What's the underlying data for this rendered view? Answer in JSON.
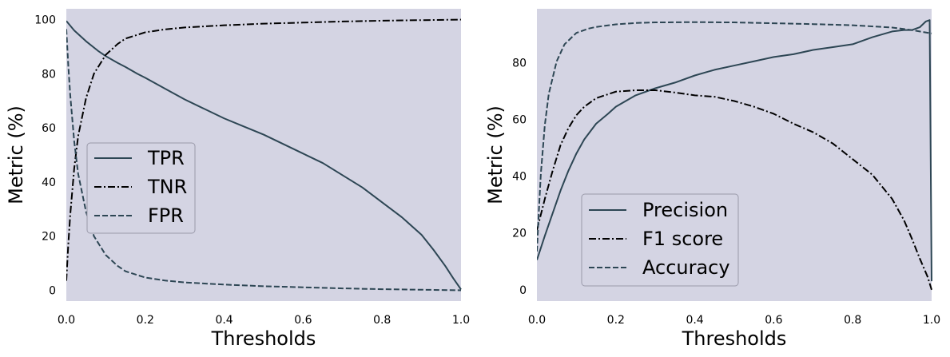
{
  "chart_data": [
    {
      "type": "line",
      "xlabel": "Thresholds",
      "ylabel": "Metric (%)",
      "xlim": [
        0.0,
        1.0
      ],
      "ylim": [
        -4,
        104
      ],
      "xticks": [
        0.0,
        0.2,
        0.4,
        0.6,
        0.8,
        1.0
      ],
      "xtick_labels": [
        "0.0",
        "0.2",
        "0.4",
        "0.6",
        "0.8",
        "1.0"
      ],
      "yticks": [
        0,
        20,
        40,
        60,
        80,
        100
      ],
      "ytick_labels": [
        "0",
        "20",
        "40",
        "60",
        "80",
        "100"
      ],
      "grid": false,
      "legend_position": "center-left",
      "series": [
        {
          "name": "TPR",
          "style": "solid",
          "color": "#2d4654",
          "x": [
            0,
            0.02,
            0.05,
            0.08,
            0.1,
            0.13,
            0.15,
            0.18,
            0.2,
            0.25,
            0.3,
            0.35,
            0.4,
            0.45,
            0.5,
            0.55,
            0.6,
            0.65,
            0.7,
            0.75,
            0.8,
            0.85,
            0.9,
            0.93,
            0.96,
            0.98,
            1.0
          ],
          "y": [
            99.5,
            96,
            92,
            88.5,
            86.5,
            84,
            82.5,
            80,
            78.5,
            74.5,
            70.5,
            67,
            63.5,
            60.5,
            57.5,
            54,
            50.5,
            47,
            42.5,
            38,
            32.5,
            27,
            20.5,
            15,
            9,
            4.5,
            0.3
          ]
        },
        {
          "name": "TNR",
          "style": "dashdot",
          "color": "#000000",
          "x": [
            0,
            0.005,
            0.01,
            0.02,
            0.03,
            0.05,
            0.07,
            0.1,
            0.13,
            0.15,
            0.2,
            0.25,
            0.3,
            0.4,
            0.5,
            0.6,
            0.7,
            0.8,
            0.9,
            1.0
          ],
          "y": [
            3.5,
            17,
            28,
            45,
            57,
            71,
            80,
            87,
            91,
            93,
            95.3,
            96.4,
            97.1,
            97.9,
            98.5,
            98.9,
            99.3,
            99.6,
            99.8,
            100
          ]
        },
        {
          "name": "FPR",
          "style": "dashed",
          "color": "#2d4654",
          "x": [
            0,
            0.005,
            0.01,
            0.02,
            0.03,
            0.05,
            0.07,
            0.1,
            0.13,
            0.15,
            0.2,
            0.25,
            0.3,
            0.4,
            0.5,
            0.6,
            0.7,
            0.8,
            0.9,
            1.0
          ],
          "y": [
            96.5,
            83,
            72,
            55,
            43,
            29,
            20,
            13,
            9,
            7,
            4.7,
            3.6,
            2.9,
            2.1,
            1.5,
            1.1,
            0.7,
            0.4,
            0.2,
            0
          ]
        }
      ]
    },
    {
      "type": "line",
      "xlabel": "Thresholds",
      "ylabel": "Metric (%)",
      "xlim": [
        0.0,
        1.0
      ],
      "ylim": [
        -4,
        99
      ],
      "xticks": [
        0.0,
        0.2,
        0.4,
        0.6,
        0.8,
        1.0
      ],
      "xtick_labels": [
        "0.0",
        "0.2",
        "0.4",
        "0.6",
        "0.8",
        "1.0"
      ],
      "yticks": [
        0,
        20,
        40,
        60,
        80
      ],
      "ytick_labels": [
        "0",
        "20",
        "40",
        "60",
        "80"
      ],
      "grid": false,
      "legend_position": "lower-left",
      "series": [
        {
          "name": "Precision",
          "style": "solid",
          "color": "#2d4654",
          "x": [
            0,
            0.02,
            0.04,
            0.06,
            0.08,
            0.1,
            0.12,
            0.15,
            0.18,
            0.2,
            0.25,
            0.3,
            0.35,
            0.4,
            0.45,
            0.5,
            0.55,
            0.6,
            0.65,
            0.7,
            0.75,
            0.8,
            0.85,
            0.9,
            0.93,
            0.95,
            0.97,
            0.985,
            0.995,
            1.0
          ],
          "y": [
            10.5,
            19,
            27,
            35,
            42,
            48,
            53,
            58.5,
            62,
            64.5,
            68.5,
            71,
            73,
            75.5,
            77.5,
            79,
            80.5,
            82,
            83,
            84.5,
            85.5,
            86.5,
            89,
            91,
            91.5,
            91.5,
            92.5,
            94.5,
            95,
            3
          ]
        },
        {
          "name": "F1 score",
          "style": "dashdot",
          "color": "#000000",
          "x": [
            0,
            0.02,
            0.04,
            0.06,
            0.08,
            0.1,
            0.12,
            0.15,
            0.2,
            0.25,
            0.3,
            0.35,
            0.4,
            0.45,
            0.5,
            0.55,
            0.6,
            0.65,
            0.7,
            0.75,
            0.8,
            0.85,
            0.9,
            0.93,
            0.95,
            0.97,
            0.99,
            1.0
          ],
          "y": [
            21,
            32,
            42,
            51,
            57,
            61.5,
            64.5,
            67.5,
            69.8,
            70.3,
            70.3,
            69.5,
            68.5,
            68,
            66.5,
            64.5,
            62,
            58.5,
            55.5,
            51.5,
            46,
            40.5,
            32,
            24.5,
            18,
            11,
            4.5,
            0
          ]
        },
        {
          "name": "Accuracy",
          "style": "dashed",
          "color": "#2d4654",
          "x": [
            0,
            0.005,
            0.01,
            0.02,
            0.03,
            0.05,
            0.07,
            0.1,
            0.13,
            0.15,
            0.2,
            0.25,
            0.3,
            0.4,
            0.5,
            0.6,
            0.7,
            0.8,
            0.9,
            0.95,
            1.0
          ],
          "y": [
            13.5,
            28,
            41,
            58,
            69,
            80.5,
            86.5,
            90.5,
            92,
            92.6,
            93.5,
            94,
            94.2,
            94.3,
            94.2,
            93.9,
            93.6,
            93.2,
            92.4,
            91.5,
            90.3
          ]
        }
      ]
    }
  ]
}
